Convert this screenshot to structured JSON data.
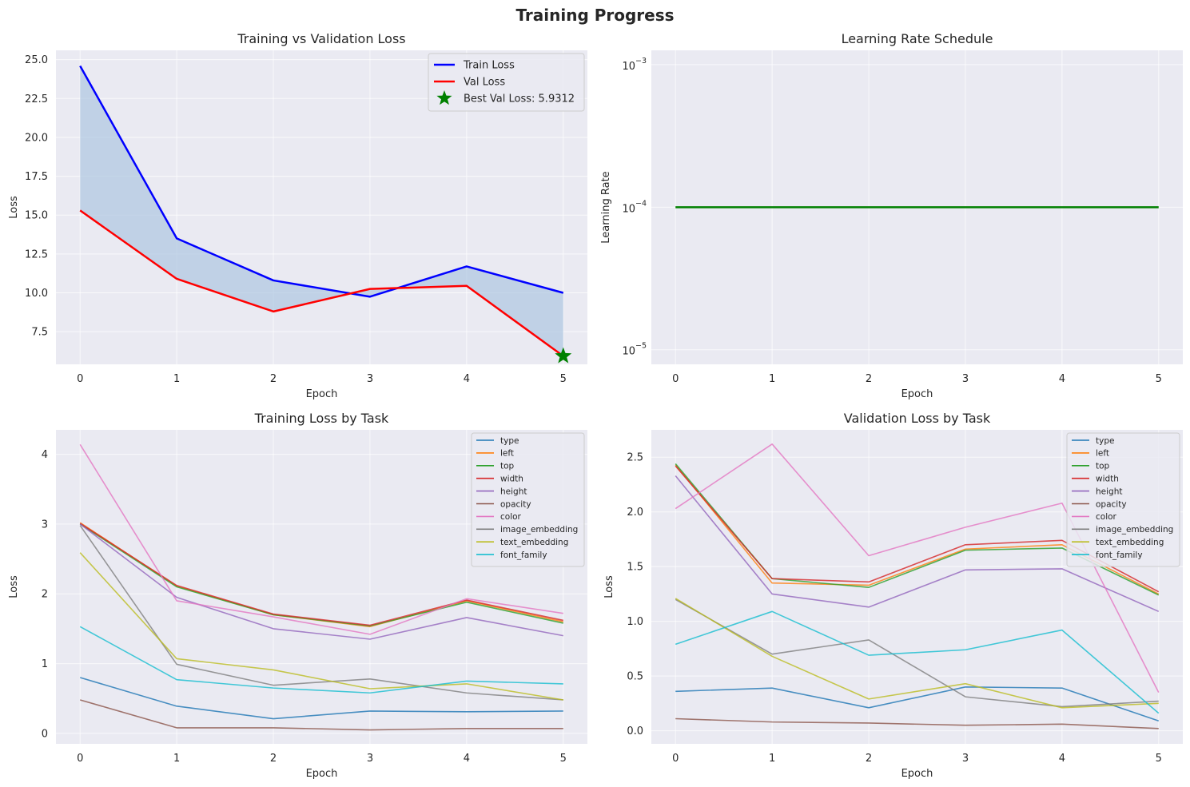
{
  "figure": {
    "title": "Training Progress"
  },
  "colors": {
    "panel_bg": "#eaeaf2",
    "grid": "#ffffff",
    "train": "#0000ff",
    "val": "#ff0000",
    "fill": "#a9c3de",
    "best_marker": "#008000",
    "lr": "#008000"
  },
  "chart_data": [
    {
      "type": "line",
      "title": "Training vs Validation Loss",
      "xlabel": "Epoch",
      "ylabel": "Loss",
      "x": [
        0,
        1,
        2,
        3,
        4,
        5
      ],
      "xlim": [
        -0.25,
        5.25
      ],
      "ylim": [
        5.4,
        25.6
      ],
      "yticks": [
        7.5,
        10.0,
        12.5,
        15.0,
        17.5,
        20.0,
        22.5,
        25.0
      ],
      "ytick_labels": [
        "7.5",
        "10.0",
        "12.5",
        "15.0",
        "17.5",
        "20.0",
        "22.5",
        "25.0"
      ],
      "grid": true,
      "legend_position": "top-right",
      "fill_between": true,
      "series": [
        {
          "name": "Train Loss",
          "values": [
            24.6,
            13.5,
            10.8,
            9.75,
            11.7,
            10.0
          ]
        },
        {
          "name": "Val Loss",
          "values": [
            15.3,
            10.9,
            8.8,
            10.25,
            10.45,
            5.9312
          ]
        }
      ],
      "annotations": [
        {
          "label": "Best Val Loss: 5.9312",
          "x": 5,
          "y": 5.9312,
          "marker": "star"
        }
      ]
    },
    {
      "type": "line",
      "title": "Learning Rate Schedule",
      "xlabel": "Epoch",
      "ylabel": "Learning Rate",
      "x": [
        0,
        1,
        2,
        3,
        4,
        5
      ],
      "xlim": [
        -0.25,
        5.25
      ],
      "yscale": "log",
      "ylim": [
        7.9e-06,
        0.00126
      ],
      "yticks": [
        1e-05,
        0.0001,
        0.001
      ],
      "ytick_labels": [
        "10",
        "10",
        "10"
      ],
      "ytick_exponents": [
        "−5",
        "−4",
        "−3"
      ],
      "grid": true,
      "series": [
        {
          "values": [
            0.0001,
            0.0001,
            0.0001,
            0.0001,
            0.0001,
            0.0001
          ]
        }
      ]
    },
    {
      "type": "line",
      "title": "Training Loss by Task",
      "xlabel": "Epoch",
      "ylabel": "Loss",
      "x": [
        0,
        1,
        2,
        3,
        4,
        5
      ],
      "xlim": [
        -0.25,
        5.25
      ],
      "ylim": [
        -0.15,
        4.35
      ],
      "yticks": [
        0,
        1,
        2,
        3,
        4
      ],
      "ytick_labels": [
        "0",
        "1",
        "2",
        "3",
        "4"
      ],
      "grid": true,
      "legend_position": "top-right",
      "series": [
        {
          "name": "type",
          "color": "#1f77b4",
          "values": [
            0.8,
            0.39,
            0.21,
            0.32,
            0.31,
            0.32
          ]
        },
        {
          "name": "left",
          "color": "#ff7f0e",
          "values": [
            3.02,
            2.11,
            1.7,
            1.53,
            1.9,
            1.6
          ]
        },
        {
          "name": "top",
          "color": "#2ca02c",
          "values": [
            3.0,
            2.1,
            1.7,
            1.54,
            1.88,
            1.58
          ]
        },
        {
          "name": "width",
          "color": "#d62728",
          "values": [
            3.01,
            2.12,
            1.71,
            1.55,
            1.91,
            1.62
          ]
        },
        {
          "name": "height",
          "color": "#9467bd",
          "values": [
            3.0,
            1.95,
            1.5,
            1.35,
            1.66,
            1.4
          ]
        },
        {
          "name": "opacity",
          "color": "#8c564b",
          "values": [
            0.48,
            0.08,
            0.08,
            0.05,
            0.07,
            0.07
          ]
        },
        {
          "name": "color",
          "color": "#e377c2",
          "values": [
            4.14,
            1.9,
            1.67,
            1.42,
            1.93,
            1.72
          ]
        },
        {
          "name": "image_embedding",
          "color": "#7f7f7f",
          "values": [
            2.98,
            0.99,
            0.69,
            0.78,
            0.58,
            0.48
          ]
        },
        {
          "name": "text_embedding",
          "color": "#bcbd22",
          "values": [
            2.59,
            1.07,
            0.91,
            0.64,
            0.71,
            0.48
          ]
        },
        {
          "name": "font_family",
          "color": "#17becf",
          "values": [
            1.53,
            0.77,
            0.65,
            0.58,
            0.75,
            0.71
          ]
        }
      ]
    },
    {
      "type": "line",
      "title": "Validation Loss by Task",
      "xlabel": "Epoch",
      "ylabel": "Loss",
      "x": [
        0,
        1,
        2,
        3,
        4,
        5
      ],
      "xlim": [
        -0.25,
        5.25
      ],
      "ylim": [
        -0.12,
        2.75
      ],
      "yticks": [
        0.0,
        0.5,
        1.0,
        1.5,
        2.0,
        2.5
      ],
      "ytick_labels": [
        "0.0",
        "0.5",
        "1.0",
        "1.5",
        "2.0",
        "2.5"
      ],
      "grid": true,
      "legend_position": "top-right",
      "series": [
        {
          "name": "type",
          "color": "#1f77b4",
          "values": [
            0.36,
            0.39,
            0.21,
            0.4,
            0.39,
            0.09
          ]
        },
        {
          "name": "left",
          "color": "#ff7f0e",
          "values": [
            2.43,
            1.35,
            1.33,
            1.66,
            1.7,
            1.25
          ]
        },
        {
          "name": "top",
          "color": "#2ca02c",
          "values": [
            2.44,
            1.39,
            1.31,
            1.65,
            1.67,
            1.24
          ]
        },
        {
          "name": "width",
          "color": "#d62728",
          "values": [
            2.42,
            1.39,
            1.36,
            1.7,
            1.74,
            1.27
          ]
        },
        {
          "name": "height",
          "color": "#9467bd",
          "values": [
            2.33,
            1.25,
            1.13,
            1.47,
            1.48,
            1.09
          ]
        },
        {
          "name": "opacity",
          "color": "#8c564b",
          "values": [
            0.11,
            0.08,
            0.07,
            0.05,
            0.06,
            0.02
          ]
        },
        {
          "name": "color",
          "color": "#e377c2",
          "values": [
            2.03,
            2.62,
            1.6,
            1.86,
            2.08,
            0.35
          ]
        },
        {
          "name": "image_embedding",
          "color": "#7f7f7f",
          "values": [
            1.2,
            0.7,
            0.83,
            0.31,
            0.22,
            0.27
          ]
        },
        {
          "name": "text_embedding",
          "color": "#bcbd22",
          "values": [
            1.21,
            0.68,
            0.29,
            0.43,
            0.21,
            0.25
          ]
        },
        {
          "name": "font_family",
          "color": "#17becf",
          "values": [
            0.79,
            1.09,
            0.69,
            0.74,
            0.92,
            0.16
          ]
        }
      ]
    }
  ]
}
